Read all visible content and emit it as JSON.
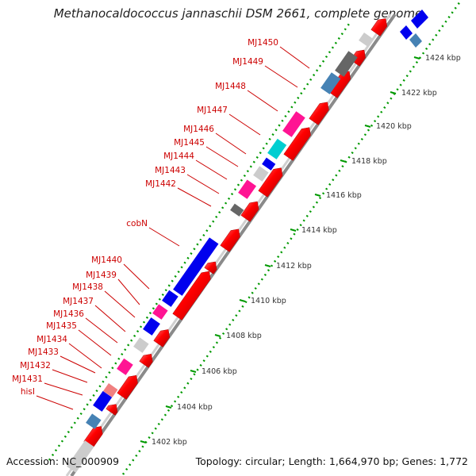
{
  "title": "Methanocaldococcus jannaschii DSM 2661, complete genome",
  "footer": {
    "accession": "Accession: NC_000909",
    "summary": "Topology: circular; Length: 1,664,970 bp; Genes: 1,772"
  },
  "colors": {
    "forward_gene": "#ff0000",
    "backbone": "#a0a0a0",
    "scale_dots": "#009900",
    "gene_label": "#cc0000",
    "blue": "#0000ee",
    "magenta": "#ff1493",
    "cyan": "#00ced1",
    "steel": "#4682b4",
    "pink": "#f08080",
    "gray": "#666666",
    "lightgray": "#cccccc"
  },
  "scale_labels": [
    "1402 kbp",
    "1404 kbp",
    "1406 kbp",
    "1408 kbp",
    "1410 kbp",
    "1412 kbp",
    "1414 kbp",
    "1416 kbp",
    "1418 kbp",
    "1420 kbp",
    "1422 kbp",
    "1424 kbp"
  ],
  "gene_labels": [
    "MJ1450",
    "MJ1449",
    "MJ1448",
    "MJ1447",
    "MJ1446",
    "MJ1445",
    "MJ1444",
    "MJ1443",
    "MJ1442",
    "cobN",
    "MJ1440",
    "MJ1439",
    "MJ1438",
    "MJ1437",
    "MJ1436",
    "MJ1435",
    "MJ1434",
    "MJ1433",
    "MJ1432",
    "MJ1431",
    "hisI"
  ]
}
